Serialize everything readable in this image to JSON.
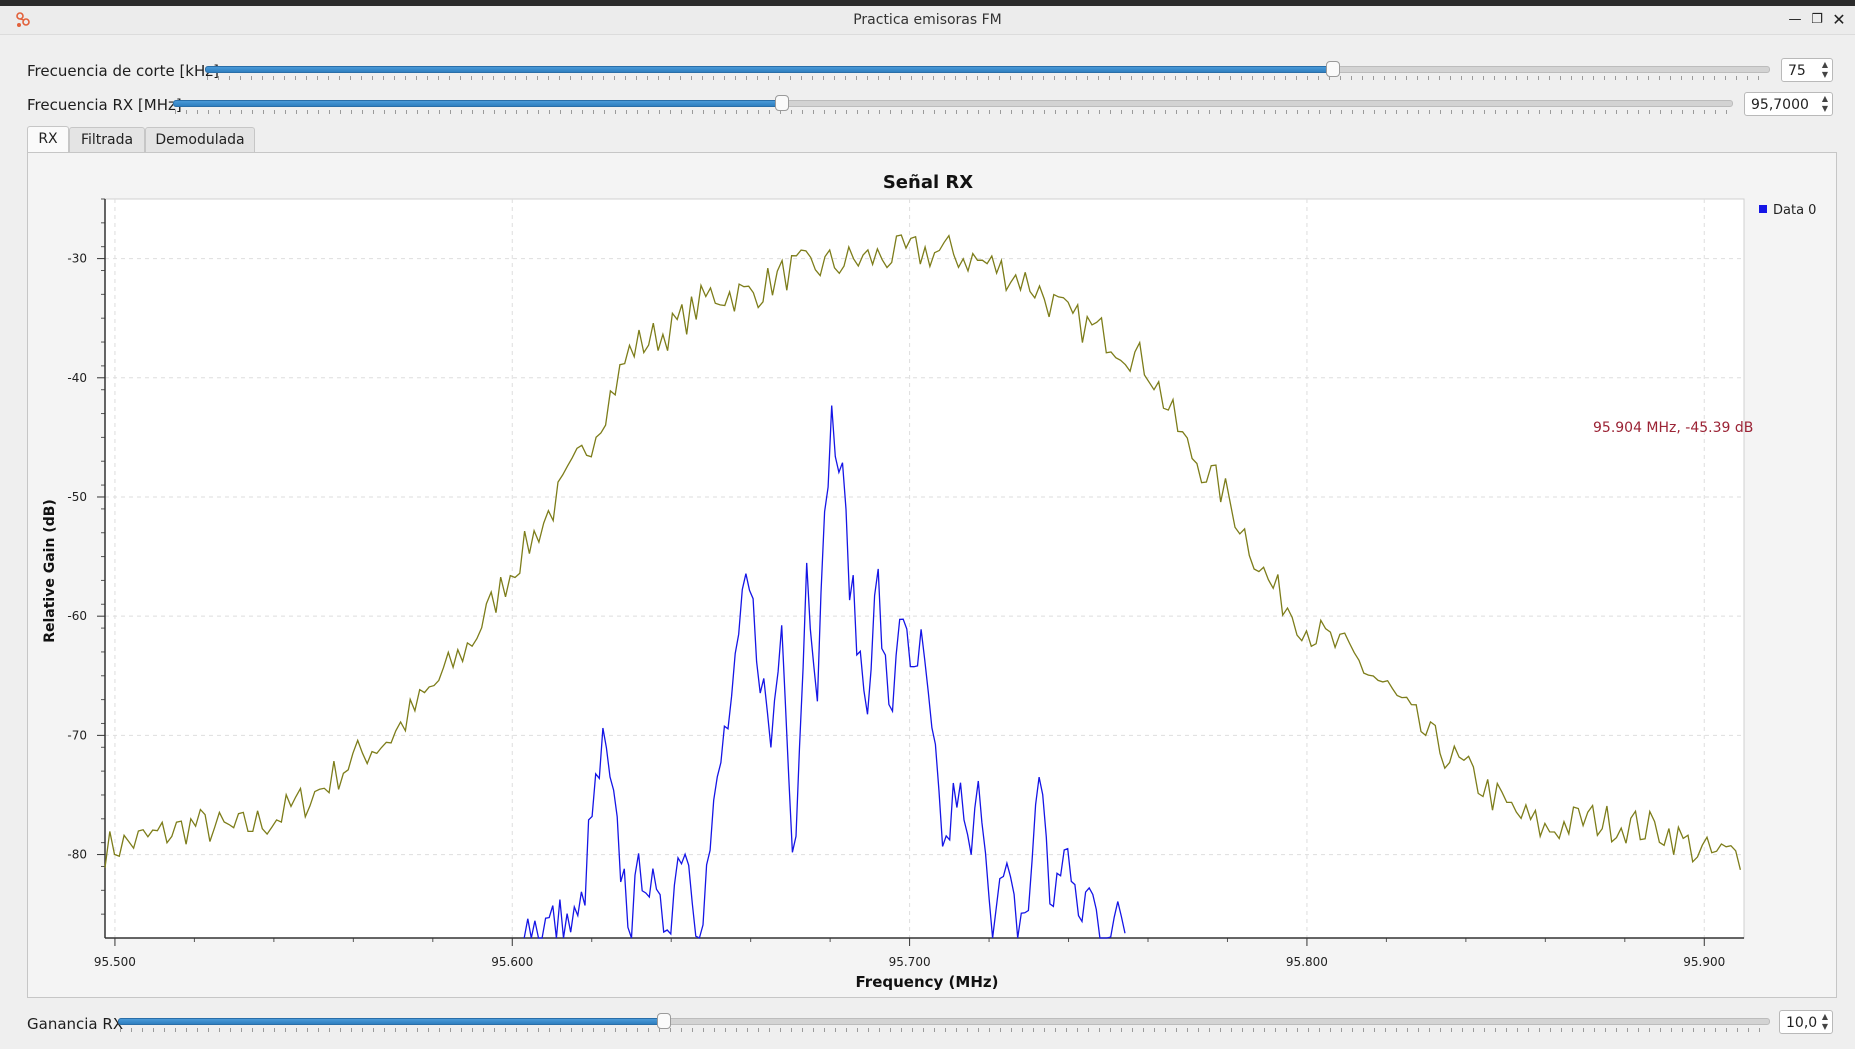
{
  "window": {
    "title": "Practica emisoras FM",
    "controls": [
      "minimize-icon",
      "maximize-icon",
      "close-icon"
    ]
  },
  "controls": {
    "cutoff": {
      "label": "Frecuencia de corte [kHz]",
      "value": "75",
      "fraction": 0.72
    },
    "rx_freq": {
      "label": "Frecuencia RX [MHz]",
      "value": "95,7000",
      "fraction": 0.39
    },
    "gain": {
      "label": "Ganancia RX",
      "value": "10,0",
      "fraction": 0.33
    }
  },
  "tabs": [
    {
      "label": "RX",
      "active": true
    },
    {
      "label": "Filtrada",
      "active": false
    },
    {
      "label": "Demodulada",
      "active": false
    }
  ],
  "marker": {
    "text": "95.904 MHz, -45.39 dB"
  },
  "colors": {
    "trace_hold": "#7d7d1a",
    "trace_data0": "#1515e6",
    "marker": "#9b2335",
    "slider_fill": "#3a8cd0"
  },
  "chart_data": {
    "type": "line",
    "title": "Señal RX",
    "xlabel": "Frequency (MHz)",
    "ylabel": "Relative Gain (dB)",
    "xlim": [
      95.4975,
      95.91
    ],
    "ylim": [
      -87,
      -25
    ],
    "x_ticks": [
      95.5,
      95.6,
      95.7,
      95.8,
      95.9
    ],
    "x_tick_labels": [
      "95.500",
      "95.600",
      "95.700",
      "95.800",
      "95.900"
    ],
    "y_ticks": [
      -30,
      -40,
      -50,
      -60,
      -70,
      -80
    ],
    "y_tick_labels": [
      "-30",
      "-40",
      "-50",
      "-60",
      "-70",
      "-80"
    ],
    "grid": true,
    "legend_position": "right",
    "series": [
      {
        "name": "",
        "color": "#7d7d1a",
        "x": [
          95.4975,
          95.51,
          95.52,
          95.53,
          95.54,
          95.55,
          95.56,
          95.57,
          95.58,
          95.59,
          95.6,
          95.61,
          95.62,
          95.63,
          95.64,
          95.65,
          95.66,
          95.67,
          95.68,
          95.69,
          95.7,
          95.71,
          95.72,
          95.73,
          95.74,
          95.75,
          95.76,
          95.77,
          95.78,
          95.79,
          95.8,
          95.81,
          95.82,
          95.83,
          95.84,
          95.85,
          95.86,
          95.87,
          95.88,
          95.89,
          95.9,
          95.91
        ],
        "y": [
          -79.5,
          -78.5,
          -77.5,
          -78,
          -77,
          -75,
          -72,
          -70,
          -66,
          -62,
          -56,
          -51,
          -45,
          -37.5,
          -36,
          -33,
          -33,
          -31,
          -30.5,
          -30,
          -29.5,
          -29.5,
          -30.5,
          -32,
          -35,
          -36.5,
          -39,
          -46,
          -50,
          -57,
          -61,
          -63,
          -66,
          -70,
          -73,
          -76,
          -78,
          -77,
          -77.5,
          -78,
          -80,
          -80
        ]
      },
      {
        "name": "Data 0",
        "color": "#1515e6",
        "x": [
          95.603,
          95.617,
          95.62,
          95.623,
          95.626,
          95.63,
          95.633,
          95.637,
          95.64,
          95.643,
          95.647,
          95.65,
          95.653,
          95.656,
          95.659,
          95.662,
          95.665,
          95.668,
          95.671,
          95.674,
          95.677,
          95.68,
          95.683,
          95.686,
          95.689,
          95.692,
          95.695,
          95.698,
          95.7,
          95.703,
          95.706,
          95.709,
          95.712,
          95.715,
          95.718,
          95.721,
          95.724,
          95.727,
          95.73,
          95.733,
          95.736,
          95.739,
          95.742,
          95.745,
          95.748,
          95.751,
          95.755
        ],
        "y": [
          -86,
          -86,
          -77,
          -71,
          -78,
          -86,
          -80,
          -86,
          -84,
          -78,
          -86,
          -79,
          -71,
          -66,
          -57,
          -63,
          -71,
          -60,
          -81,
          -56,
          -65,
          -43,
          -49,
          -60,
          -67,
          -57,
          -70,
          -57,
          -66.5,
          -63,
          -72,
          -80,
          -74,
          -81,
          -74,
          -86,
          -82,
          -86,
          -84,
          -72,
          -86,
          -78,
          -86,
          -83,
          -86,
          -86,
          -86
        ]
      }
    ]
  }
}
